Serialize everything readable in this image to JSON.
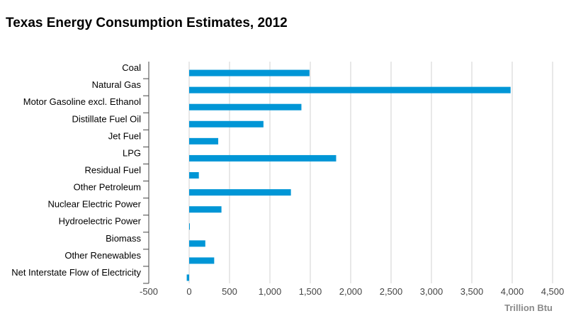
{
  "chart_data": {
    "type": "bar",
    "orientation": "horizontal",
    "title": "Texas Energy Consumption Estimates, 2012",
    "xlabel": "Trillion Btu",
    "ylabel": "",
    "xlim": [
      -500,
      4500
    ],
    "x_ticks": [
      -500,
      0,
      500,
      1000,
      1500,
      2000,
      2500,
      3000,
      3500,
      4000,
      4500
    ],
    "x_tick_labels": [
      "-500",
      "0",
      "500",
      "1,000",
      "1,500",
      "2,000",
      "2,500",
      "3,000",
      "3,500",
      "4,000",
      "4,500"
    ],
    "grid": "vertical",
    "categories": [
      "Coal",
      "Natural Gas",
      "Motor Gasoline excl. Ethanol",
      "Distillate Fuel Oil",
      "Jet Fuel",
      "LPG",
      "Residual Fuel",
      "Other Petroleum",
      "Nuclear Electric Power",
      "Hydroelectric Power",
      "Biomass",
      "Other Renewables",
      "Net Interstate Flow of Electricity"
    ],
    "values": [
      1490,
      3980,
      1390,
      920,
      360,
      1820,
      120,
      1260,
      400,
      5,
      200,
      310,
      -30
    ],
    "bar_color": "#0096d6"
  }
}
